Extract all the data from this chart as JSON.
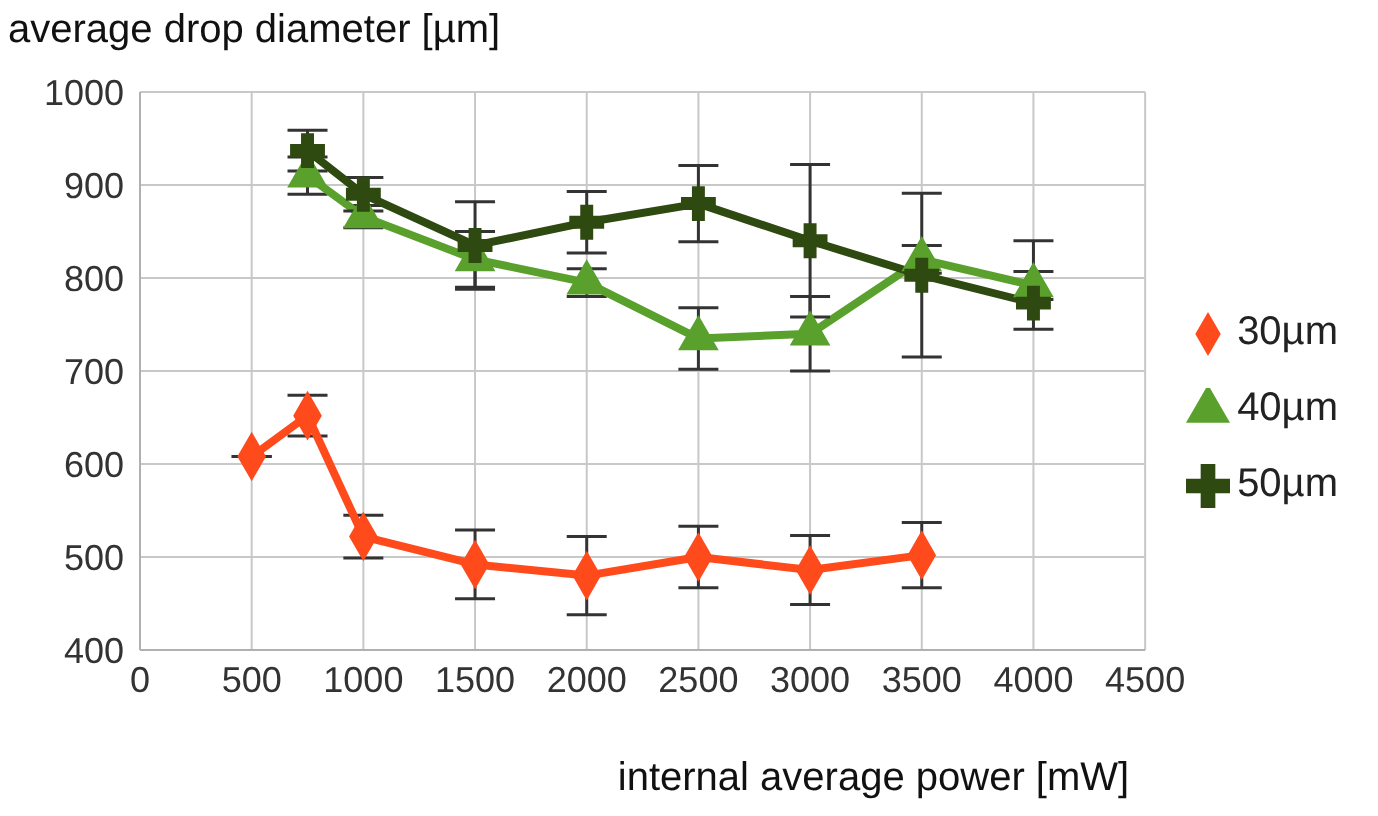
{
  "chart_data": {
    "type": "line",
    "ylabel": "average drop diameter [µm]",
    "xlabel": "internal average power [mW]",
    "xlim": [
      0,
      4500
    ],
    "xticks": [
      0,
      500,
      1000,
      1500,
      2000,
      2500,
      3000,
      3500,
      4000,
      4500
    ],
    "ylim": [
      400,
      1000
    ],
    "yticks": [
      400,
      500,
      600,
      700,
      800,
      900,
      1000
    ],
    "grid": true,
    "legend": "right",
    "line_style": "solid",
    "series": [
      {
        "name": "30µm",
        "color": "#ff4a1c",
        "marker": "diamond",
        "x": [
          500,
          750,
          1000,
          1500,
          2000,
          2500,
          3000,
          3500
        ],
        "values": [
          608,
          652,
          522,
          492,
          480,
          500,
          486,
          502
        ],
        "errors": [
          null,
          22,
          23,
          37,
          42,
          33,
          37,
          35
        ]
      },
      {
        "name": "40µm",
        "color": "#5aa02c",
        "marker": "triangle",
        "x": [
          750,
          1000,
          1500,
          2000,
          2500,
          3000,
          3500,
          4000
        ],
        "values": [
          910,
          866,
          820,
          795,
          735,
          740,
          820,
          792
        ],
        "errors": [
          20,
          12,
          30,
          15,
          33,
          40,
          15,
          15
        ]
      },
      {
        "name": "50µm",
        "color": "#2f4a10",
        "marker": "cross",
        "x": [
          750,
          1000,
          1500,
          2000,
          2500,
          3000,
          3500,
          4000
        ],
        "values": [
          937,
          890,
          835,
          860,
          880,
          840,
          803,
          773
        ],
        "errors": [
          22,
          18,
          47,
          33,
          41,
          82,
          88,
          [
            745,
            840
          ]
        ]
      }
    ]
  }
}
